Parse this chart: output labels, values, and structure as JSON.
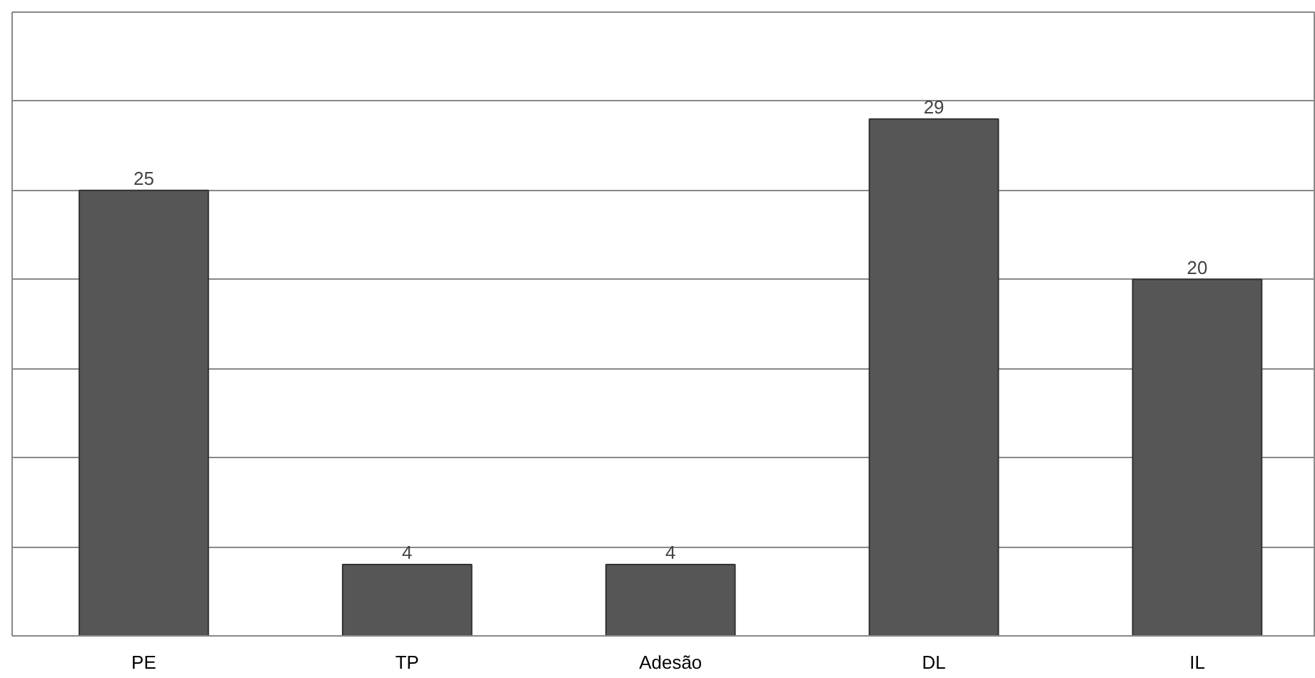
{
  "chart_data": {
    "type": "bar",
    "categories": [
      "PE",
      "TP",
      "Adesão",
      "DL",
      "IL"
    ],
    "values": [
      25,
      4,
      4,
      29,
      20
    ],
    "color": "#565656",
    "ylim": [
      0,
      35
    ],
    "yticks": [
      0,
      5,
      10,
      15,
      20,
      25,
      30,
      35
    ],
    "grid": "y",
    "data_labels": true,
    "tick_labels": "x"
  }
}
